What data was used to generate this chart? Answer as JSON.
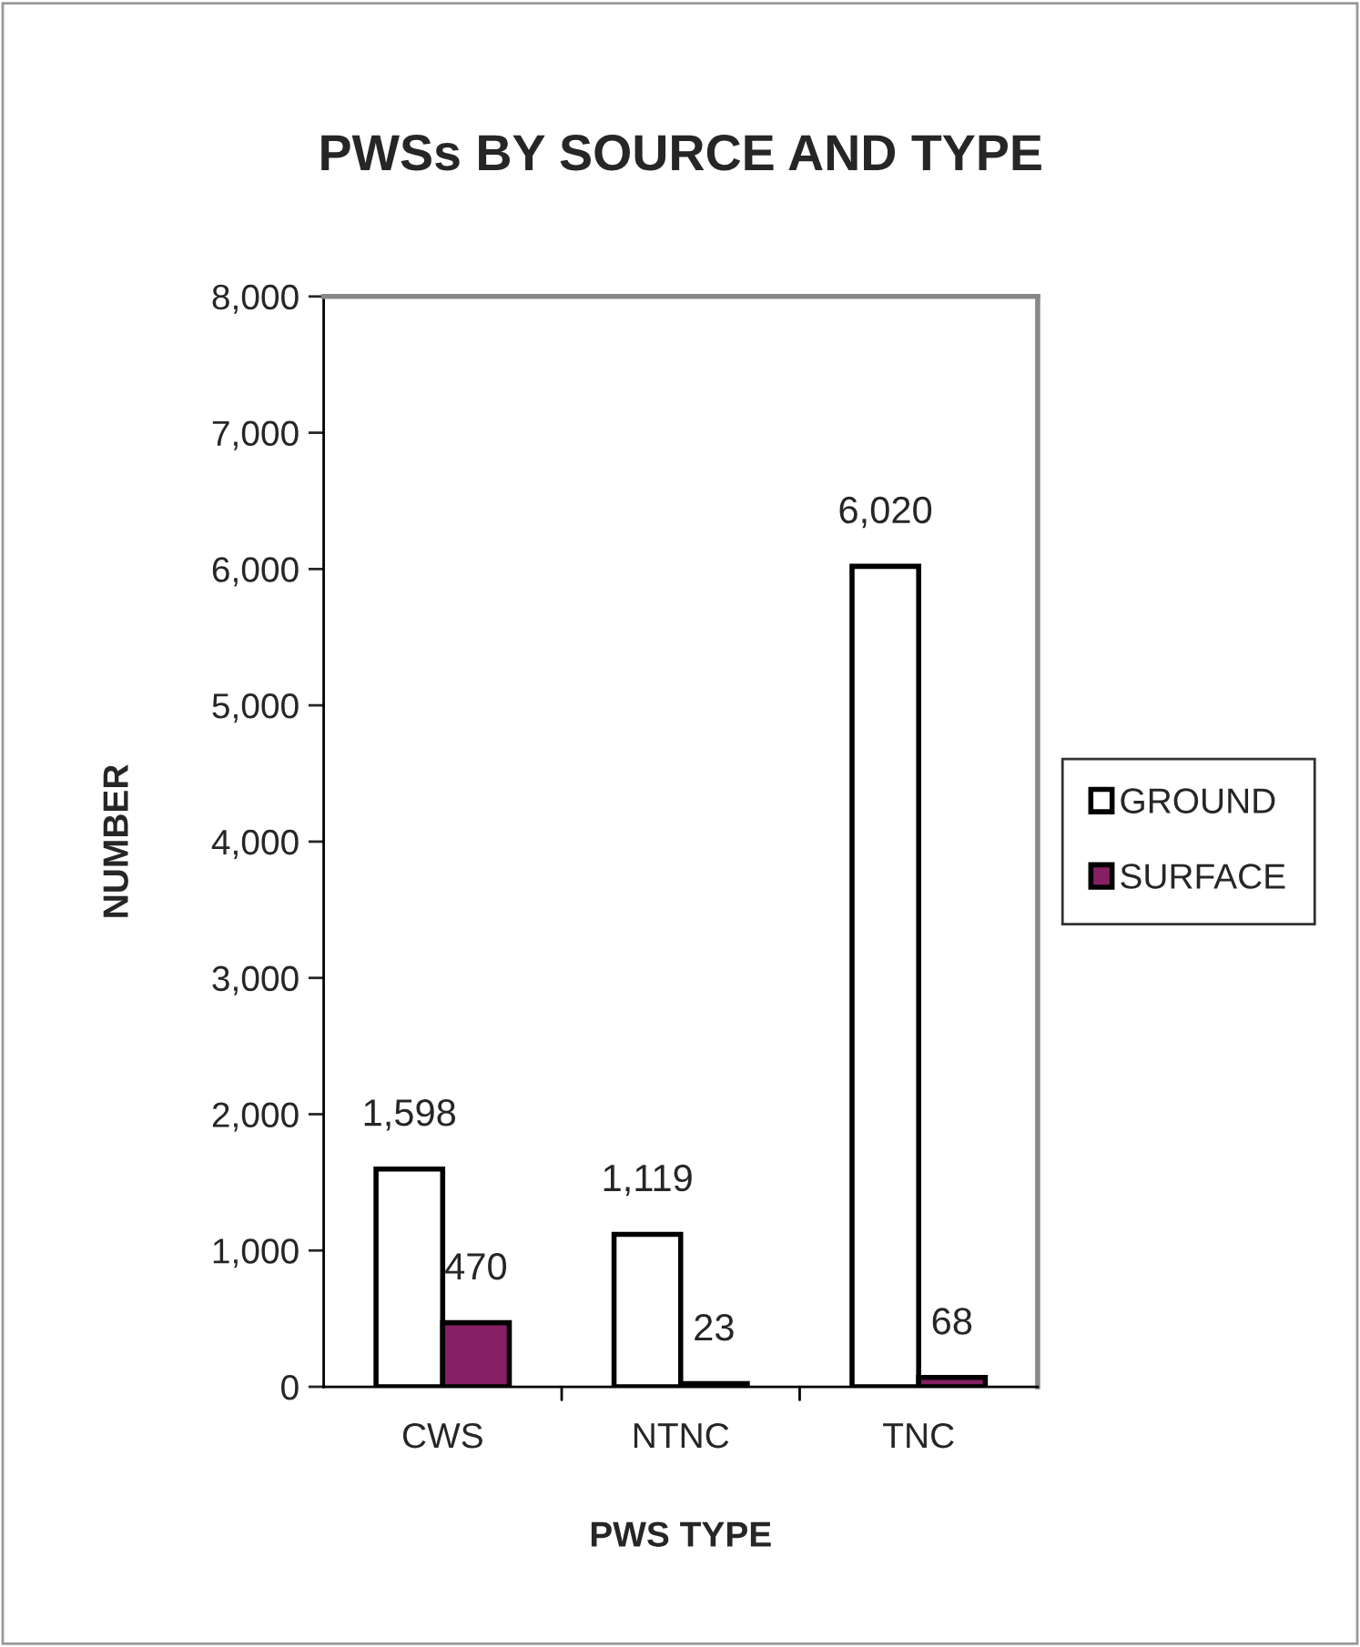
{
  "chart_data": {
    "type": "bar",
    "title": "PWSs BY SOURCE AND TYPE",
    "xlabel": "PWS TYPE",
    "ylabel": "NUMBER",
    "categories": [
      "CWS",
      "NTNC",
      "TNC"
    ],
    "series": [
      {
        "name": "GROUND",
        "color": "#ffffff",
        "values": [
          1598,
          1119,
          6020
        ],
        "value_labels": [
          "1,598",
          "1,119",
          "6,020"
        ]
      },
      {
        "name": "SURFACE",
        "color": "#862065",
        "values": [
          470,
          23,
          68
        ],
        "value_labels": [
          "470",
          "23",
          "68"
        ]
      }
    ],
    "ylim": [
      0,
      8000
    ],
    "yticks": [
      {
        "value": 0,
        "label": "0"
      },
      {
        "value": 1000,
        "label": "1,000"
      },
      {
        "value": 2000,
        "label": "2,000"
      },
      {
        "value": 3000,
        "label": "3,000"
      },
      {
        "value": 4000,
        "label": "4,000"
      },
      {
        "value": 5000,
        "label": "5,000"
      },
      {
        "value": 6000,
        "label": "6,000"
      },
      {
        "value": 7000,
        "label": "7,000"
      },
      {
        "value": 8000,
        "label": "8,000"
      }
    ],
    "grid": false,
    "legend": "right"
  }
}
